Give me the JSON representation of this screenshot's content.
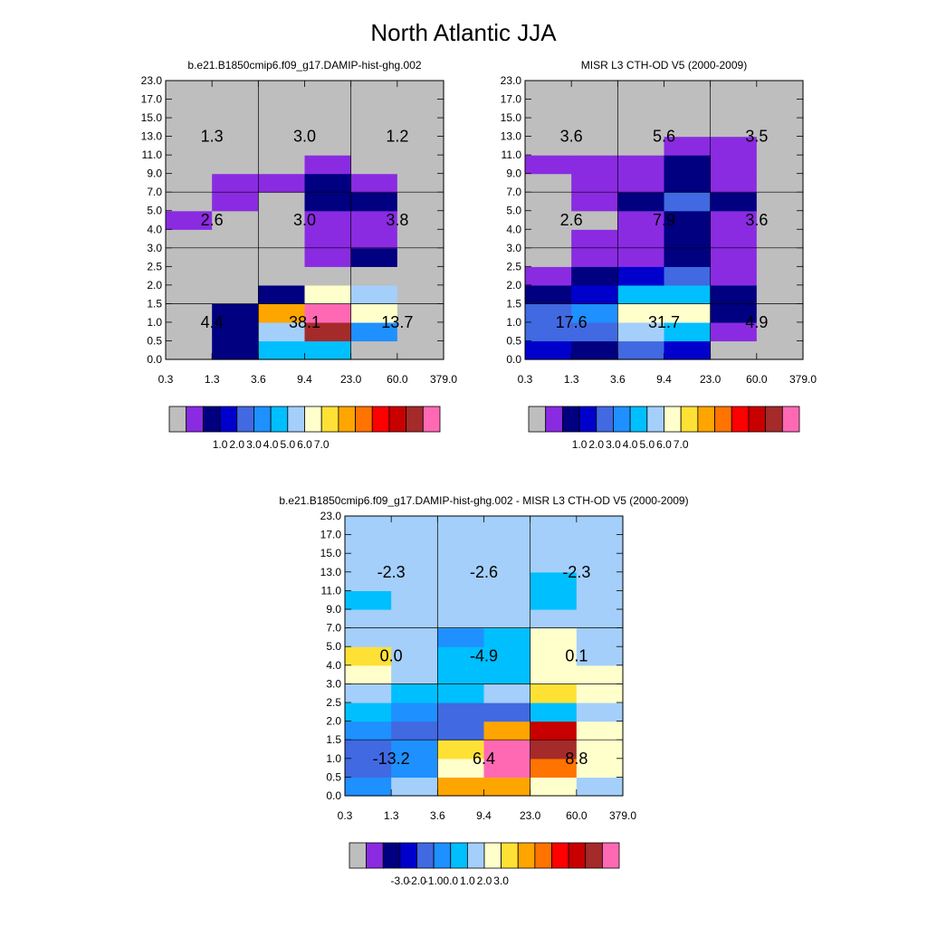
{
  "title": "North Atlantic JJA",
  "chart_data": [
    {
      "type": "heatmap",
      "title": "b.e21.B1850cmip6.f09_g17.DAMIP-hist-ghg.002",
      "x_tick_labels": [
        "0.3",
        "1.3",
        "3.6",
        "9.4",
        "23.0",
        "60.0",
        "379.0"
      ],
      "y_tick_labels": [
        "0.0",
        "0.5",
        "1.0",
        "1.5",
        "2.0",
        "2.5",
        "3.0",
        "4.0",
        "5.0",
        "7.0",
        "9.0",
        "11.0",
        "13.0",
        "15.0",
        "17.0",
        "23.0"
      ],
      "cells_bottom_to_top": [
        [
          "#BEBEBE",
          "#000080",
          "#00BFFF",
          "#00BFFF",
          "#BEBEBE",
          "#BEBEBE"
        ],
        [
          "#BEBEBE",
          "#000080",
          "#A4CFFB",
          "#A52A2A",
          "#1E90FF",
          "#BEBEBE"
        ],
        [
          "#BEBEBE",
          "#000080",
          "#FFA500",
          "#FF69B4",
          "#FFFFCC",
          "#BEBEBE"
        ],
        [
          "#BEBEBE",
          "#BEBEBE",
          "#000080",
          "#FFFFCC",
          "#A4CFFB",
          "#BEBEBE"
        ],
        [
          "#BEBEBE",
          "#BEBEBE",
          "#BEBEBE",
          "#BEBEBE",
          "#BEBEBE",
          "#BEBEBE"
        ],
        [
          "#BEBEBE",
          "#BEBEBE",
          "#BEBEBE",
          "#8A2BE2",
          "#000080",
          "#BEBEBE"
        ],
        [
          "#BEBEBE",
          "#BEBEBE",
          "#BEBEBE",
          "#8A2BE2",
          "#8A2BE2",
          "#BEBEBE"
        ],
        [
          "#8A2BE2",
          "#BEBEBE",
          "#BEBEBE",
          "#8A2BE2",
          "#8A2BE2",
          "#BEBEBE"
        ],
        [
          "#BEBEBE",
          "#8A2BE2",
          "#BEBEBE",
          "#000080",
          "#000080",
          "#BEBEBE"
        ],
        [
          "#BEBEBE",
          "#8A2BE2",
          "#8A2BE2",
          "#000080",
          "#8A2BE2",
          "#BEBEBE"
        ],
        [
          "#BEBEBE",
          "#BEBEBE",
          "#BEBEBE",
          "#8A2BE2",
          "#BEBEBE",
          "#BEBEBE"
        ],
        [
          "#BEBEBE",
          "#BEBEBE",
          "#BEBEBE",
          "#BEBEBE",
          "#BEBEBE",
          "#BEBEBE"
        ],
        [
          "#BEBEBE",
          "#BEBEBE",
          "#BEBEBE",
          "#BEBEBE",
          "#BEBEBE",
          "#BEBEBE"
        ],
        [
          "#BEBEBE",
          "#BEBEBE",
          "#BEBEBE",
          "#BEBEBE",
          "#BEBEBE",
          "#BEBEBE"
        ],
        [
          "#BEBEBE",
          "#BEBEBE",
          "#BEBEBE",
          "#BEBEBE",
          "#BEBEBE",
          "#BEBEBE"
        ]
      ],
      "block_labels": [
        {
          "x_bin": 0,
          "y_band": 0,
          "value": "4.4"
        },
        {
          "x_bin": 1,
          "y_band": 0,
          "value": "38.1"
        },
        {
          "x_bin": 2,
          "y_band": 0,
          "value": "13.7"
        },
        {
          "x_bin": 0,
          "y_band": 1,
          "value": "2.6"
        },
        {
          "x_bin": 1,
          "y_band": 1,
          "value": "3.0"
        },
        {
          "x_bin": 2,
          "y_band": 1,
          "value": "3.8"
        },
        {
          "x_bin": 0,
          "y_band": 2,
          "value": "1.3"
        },
        {
          "x_bin": 1,
          "y_band": 2,
          "value": "3.0"
        },
        {
          "x_bin": 2,
          "y_band": 2,
          "value": "1.2"
        }
      ],
      "colorbar": {
        "colors": [
          "#BEBEBE",
          "#8A2BE2",
          "#000080",
          "#0000CD",
          "#4169E1",
          "#1E90FF",
          "#00BFFF",
          "#A4CFFB",
          "#FFFFCC",
          "#FFE135",
          "#FFA500",
          "#FF7300",
          "#FF0000",
          "#C80000",
          "#A52A2A",
          "#FF69B4"
        ],
        "labels": [
          "1.0",
          "2.0",
          "3.0",
          "4.0",
          "5.0",
          "6.0",
          "7.0"
        ]
      }
    },
    {
      "type": "heatmap",
      "title": "MISR L3 CTH-OD V5 (2000-2009)",
      "x_tick_labels": [
        "0.3",
        "1.3",
        "3.6",
        "9.4",
        "23.0",
        "60.0",
        "379.0"
      ],
      "y_tick_labels": [
        "0.0",
        "0.5",
        "1.0",
        "1.5",
        "2.0",
        "2.5",
        "3.0",
        "4.0",
        "5.0",
        "7.0",
        "9.0",
        "11.0",
        "13.0",
        "15.0",
        "17.0",
        "23.0"
      ],
      "cells_bottom_to_top": [
        [
          "#0000CD",
          "#000080",
          "#4169E1",
          "#0000CD",
          "#BEBEBE",
          "#BEBEBE"
        ],
        [
          "#4169E1",
          "#4169E1",
          "#A4CFFB",
          "#00BFFF",
          "#8A2BE2",
          "#BEBEBE"
        ],
        [
          "#4169E1",
          "#1E90FF",
          "#FFFFCC",
          "#FFFFCC",
          "#000080",
          "#BEBEBE"
        ],
        [
          "#000080",
          "#0000CD",
          "#00BFFF",
          "#00BFFF",
          "#000080",
          "#BEBEBE"
        ],
        [
          "#8A2BE2",
          "#000080",
          "#0000CD",
          "#4169E1",
          "#8A2BE2",
          "#BEBEBE"
        ],
        [
          "#BEBEBE",
          "#8A2BE2",
          "#8A2BE2",
          "#000080",
          "#8A2BE2",
          "#BEBEBE"
        ],
        [
          "#BEBEBE",
          "#8A2BE2",
          "#8A2BE2",
          "#000080",
          "#8A2BE2",
          "#BEBEBE"
        ],
        [
          "#BEBEBE",
          "#BEBEBE",
          "#8A2BE2",
          "#000080",
          "#8A2BE2",
          "#BEBEBE"
        ],
        [
          "#BEBEBE",
          "#8A2BE2",
          "#000080",
          "#4169E1",
          "#000080",
          "#BEBEBE"
        ],
        [
          "#BEBEBE",
          "#8A2BE2",
          "#8A2BE2",
          "#000080",
          "#8A2BE2",
          "#BEBEBE"
        ],
        [
          "#8A2BE2",
          "#8A2BE2",
          "#8A2BE2",
          "#000080",
          "#8A2BE2",
          "#BEBEBE"
        ],
        [
          "#BEBEBE",
          "#BEBEBE",
          "#BEBEBE",
          "#8A2BE2",
          "#8A2BE2",
          "#BEBEBE"
        ],
        [
          "#BEBEBE",
          "#BEBEBE",
          "#BEBEBE",
          "#BEBEBE",
          "#BEBEBE",
          "#BEBEBE"
        ],
        [
          "#BEBEBE",
          "#BEBEBE",
          "#BEBEBE",
          "#BEBEBE",
          "#BEBEBE",
          "#BEBEBE"
        ],
        [
          "#BEBEBE",
          "#BEBEBE",
          "#BEBEBE",
          "#BEBEBE",
          "#BEBEBE",
          "#BEBEBE"
        ]
      ],
      "block_labels": [
        {
          "x_bin": 0,
          "y_band": 0,
          "value": "17.6"
        },
        {
          "x_bin": 1,
          "y_band": 0,
          "value": "31.7"
        },
        {
          "x_bin": 2,
          "y_band": 0,
          "value": "4.9"
        },
        {
          "x_bin": 0,
          "y_band": 1,
          "value": "2.6"
        },
        {
          "x_bin": 1,
          "y_band": 1,
          "value": "7.9"
        },
        {
          "x_bin": 2,
          "y_band": 1,
          "value": "3.6"
        },
        {
          "x_bin": 0,
          "y_band": 2,
          "value": "3.6"
        },
        {
          "x_bin": 1,
          "y_band": 2,
          "value": "5.6"
        },
        {
          "x_bin": 2,
          "y_band": 2,
          "value": "3.5"
        }
      ],
      "colorbar": {
        "colors": [
          "#BEBEBE",
          "#8A2BE2",
          "#000080",
          "#0000CD",
          "#4169E1",
          "#1E90FF",
          "#00BFFF",
          "#A4CFFB",
          "#FFFFCC",
          "#FFE135",
          "#FFA500",
          "#FF7300",
          "#FF0000",
          "#C80000",
          "#A52A2A",
          "#FF69B4"
        ],
        "labels": [
          "1.0",
          "2.0",
          "3.0",
          "4.0",
          "5.0",
          "6.0",
          "7.0"
        ]
      }
    },
    {
      "type": "heatmap",
      "title": "b.e21.B1850cmip6.f09_g17.DAMIP-hist-ghg.002 - MISR L3 CTH-OD V5 (2000-2009)",
      "x_tick_labels": [
        "0.3",
        "1.3",
        "3.6",
        "9.4",
        "23.0",
        "60.0",
        "379.0"
      ],
      "y_tick_labels": [
        "0.0",
        "0.5",
        "1.0",
        "1.5",
        "2.0",
        "2.5",
        "3.0",
        "4.0",
        "5.0",
        "7.0",
        "9.0",
        "11.0",
        "13.0",
        "15.0",
        "17.0",
        "23.0"
      ],
      "cells_bottom_to_top": [
        [
          "#1E90FF",
          "#A4CFFB",
          "#FFA500",
          "#FFA500",
          "#FFFFCC",
          "#A4CFFB"
        ],
        [
          "#4169E1",
          "#1E90FF",
          "#FFFFCC",
          "#FF69B4",
          "#FF7300",
          "#FFFFCC"
        ],
        [
          "#4169E1",
          "#1E90FF",
          "#FFE135",
          "#FF69B4",
          "#A52A2A",
          "#FFFFCC"
        ],
        [
          "#1E90FF",
          "#4169E1",
          "#4169E1",
          "#FFA500",
          "#C80000",
          "#FFFFCC"
        ],
        [
          "#00BFFF",
          "#1E90FF",
          "#4169E1",
          "#4169E1",
          "#00BFFF",
          "#A4CFFB"
        ],
        [
          "#A4CFFB",
          "#00BFFF",
          "#00BFFF",
          "#A4CFFB",
          "#FFE135",
          "#FFFFCC"
        ],
        [
          "#FFFFCC",
          "#A4CFFB",
          "#00BFFF",
          "#00BFFF",
          "#FFFFCC",
          "#FFFFCC"
        ],
        [
          "#FFE135",
          "#A4CFFB",
          "#00BFFF",
          "#00BFFF",
          "#FFFFCC",
          "#A4CFFB"
        ],
        [
          "#A4CFFB",
          "#A4CFFB",
          "#1E90FF",
          "#00BFFF",
          "#FFFFCC",
          "#A4CFFB"
        ],
        [
          "#A4CFFB",
          "#A4CFFB",
          "#A4CFFB",
          "#A4CFFB",
          "#A4CFFB",
          "#A4CFFB"
        ],
        [
          "#00BFFF",
          "#A4CFFB",
          "#A4CFFB",
          "#A4CFFB",
          "#00BFFF",
          "#A4CFFB"
        ],
        [
          "#A4CFFB",
          "#A4CFFB",
          "#A4CFFB",
          "#A4CFFB",
          "#00BFFF",
          "#A4CFFB"
        ],
        [
          "#A4CFFB",
          "#A4CFFB",
          "#A4CFFB",
          "#A4CFFB",
          "#A4CFFB",
          "#A4CFFB"
        ],
        [
          "#A4CFFB",
          "#A4CFFB",
          "#A4CFFB",
          "#A4CFFB",
          "#A4CFFB",
          "#A4CFFB"
        ],
        [
          "#A4CFFB",
          "#A4CFFB",
          "#A4CFFB",
          "#A4CFFB",
          "#A4CFFB",
          "#A4CFFB"
        ]
      ],
      "block_labels": [
        {
          "x_bin": 0,
          "y_band": 0,
          "value": "-13.2"
        },
        {
          "x_bin": 1,
          "y_band": 0,
          "value": "6.4"
        },
        {
          "x_bin": 2,
          "y_band": 0,
          "value": "8.8"
        },
        {
          "x_bin": 0,
          "y_band": 1,
          "value": "0.0"
        },
        {
          "x_bin": 1,
          "y_band": 1,
          "value": "-4.9"
        },
        {
          "x_bin": 2,
          "y_band": 1,
          "value": "0.1"
        },
        {
          "x_bin": 0,
          "y_band": 2,
          "value": "-2.3"
        },
        {
          "x_bin": 1,
          "y_band": 2,
          "value": "-2.6"
        },
        {
          "x_bin": 2,
          "y_band": 2,
          "value": "-2.3"
        }
      ],
      "colorbar": {
        "colors": [
          "#BEBEBE",
          "#8A2BE2",
          "#000080",
          "#0000CD",
          "#4169E1",
          "#1E90FF",
          "#00BFFF",
          "#A4CFFB",
          "#FFFFCC",
          "#FFE135",
          "#FFA500",
          "#FF7300",
          "#FF0000",
          "#C80000",
          "#A52A2A",
          "#FF69B4"
        ],
        "labels": [
          "-3.0",
          "-2.0",
          "-1.0",
          "0.0",
          "1.0",
          "2.0",
          "3.0"
        ]
      }
    }
  ]
}
